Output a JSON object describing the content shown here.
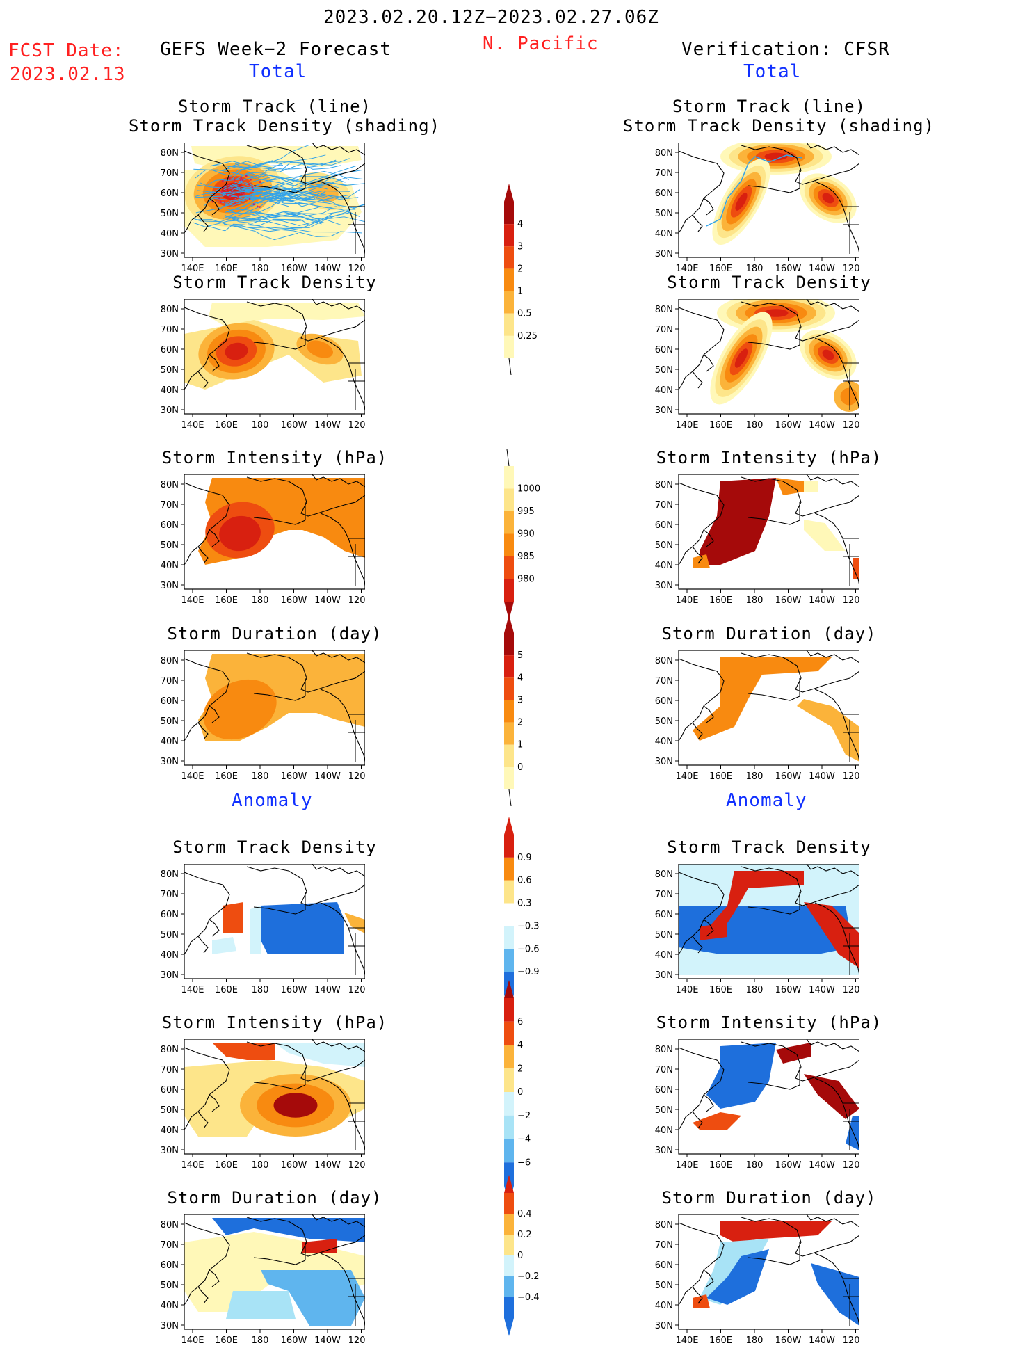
{
  "header": {
    "date_range": "2023.02.20.12Z−2023.02.27.06Z",
    "fcst_label": "FCST Date:",
    "fcst_date": "2023.02.13",
    "left_title": "GEFS Week−2 Forecast",
    "region": "N. Pacific",
    "right_title": "Verification: CFSR",
    "total_label": "Total",
    "anomaly_label": "Anomaly"
  },
  "panel_titles": {
    "track_line": "Storm Track (line)",
    "track_shade": "Storm Track Density (shading)",
    "density": "Storm Track Density",
    "intensity": "Storm Intensity (hPa)",
    "duration": "Storm Duration (day)"
  },
  "axes": {
    "lon_ticks": [
      "140E",
      "160E",
      "180",
      "160W",
      "140W",
      "120W"
    ],
    "lat_ticks": [
      "80N",
      "70N",
      "60N",
      "50N",
      "40N",
      "30N"
    ]
  },
  "colorbars": {
    "density": [
      "4",
      "3",
      "2",
      "1",
      "0.5",
      "0.25"
    ],
    "intensity": [
      "1000",
      "995",
      "990",
      "985",
      "980"
    ],
    "duration": [
      "5",
      "4",
      "3",
      "2",
      "1",
      "0"
    ],
    "density_anom": [
      "0.9",
      "0.6",
      "0.3",
      "−0.3",
      "−0.6",
      "−0.9"
    ],
    "intensity_anom": [
      "6",
      "4",
      "2",
      "0",
      "−2",
      "−4",
      "−6"
    ],
    "duration_anom": [
      "0.4",
      "0.2",
      "0",
      "−0.2",
      "−0.4"
    ]
  },
  "colors": {
    "warm": [
      "#fff8b8",
      "#fde58a",
      "#fbb33a",
      "#f88a10",
      "#ee4d10",
      "#d82010",
      "#a50a0a"
    ],
    "cool": [
      "#d2f3fb",
      "#a8e3f6",
      "#5fb5ee",
      "#1e6fdc"
    ],
    "track_line": "#33a3e8"
  }
}
